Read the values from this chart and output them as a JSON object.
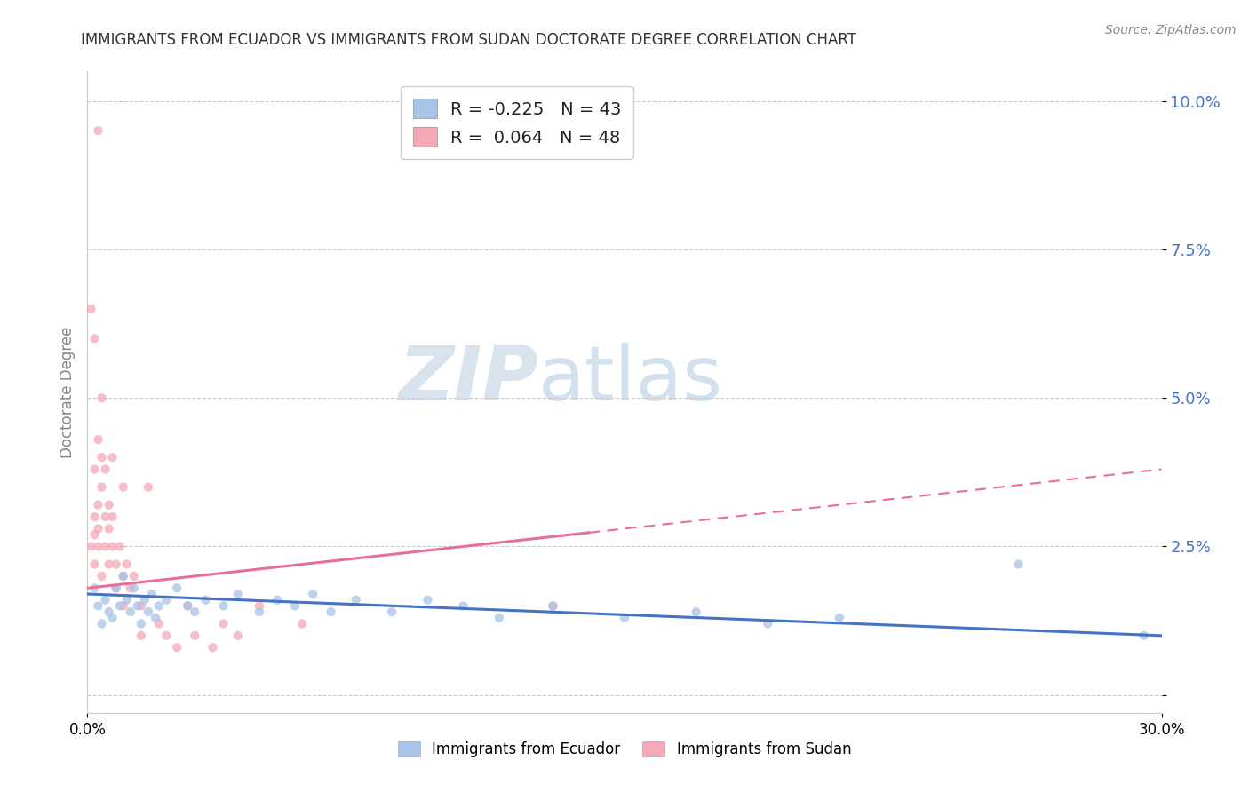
{
  "title": "IMMIGRANTS FROM ECUADOR VS IMMIGRANTS FROM SUDAN DOCTORATE DEGREE CORRELATION CHART",
  "source": "Source: ZipAtlas.com",
  "ylabel": "Doctorate Degree",
  "xlim": [
    0.0,
    0.3
  ],
  "ylim": [
    -0.003,
    0.105
  ],
  "ytick_vals": [
    0.0,
    0.025,
    0.05,
    0.075,
    0.1
  ],
  "ytick_labels": [
    "",
    "2.5%",
    "5.0%",
    "7.5%",
    "10.0%"
  ],
  "ecuador_color": "#a8c4e8",
  "sudan_color": "#f4a8b8",
  "ecuador_line_color": "#4472c4",
  "sudan_line_color": "#e87090",
  "background_color": "#ffffff",
  "legend_ecuador_label": "R = -0.225   N = 43",
  "legend_sudan_label": "R =  0.064   N = 48",
  "watermark_zip": "ZIP",
  "watermark_atlas": "atlas",
  "ecuador_R": -0.225,
  "sudan_R": 0.064,
  "ecuador_N": 43,
  "sudan_N": 48,
  "ecuador_points": [
    [
      0.002,
      0.018
    ],
    [
      0.003,
      0.015
    ],
    [
      0.004,
      0.012
    ],
    [
      0.005,
      0.016
    ],
    [
      0.006,
      0.014
    ],
    [
      0.007,
      0.013
    ],
    [
      0.008,
      0.018
    ],
    [
      0.009,
      0.015
    ],
    [
      0.01,
      0.02
    ],
    [
      0.011,
      0.016
    ],
    [
      0.012,
      0.014
    ],
    [
      0.013,
      0.018
    ],
    [
      0.014,
      0.015
    ],
    [
      0.015,
      0.012
    ],
    [
      0.016,
      0.016
    ],
    [
      0.017,
      0.014
    ],
    [
      0.018,
      0.017
    ],
    [
      0.019,
      0.013
    ],
    [
      0.02,
      0.015
    ],
    [
      0.022,
      0.016
    ],
    [
      0.025,
      0.018
    ],
    [
      0.028,
      0.015
    ],
    [
      0.03,
      0.014
    ],
    [
      0.033,
      0.016
    ],
    [
      0.038,
      0.015
    ],
    [
      0.042,
      0.017
    ],
    [
      0.048,
      0.014
    ],
    [
      0.053,
      0.016
    ],
    [
      0.058,
      0.015
    ],
    [
      0.063,
      0.017
    ],
    [
      0.068,
      0.014
    ],
    [
      0.075,
      0.016
    ],
    [
      0.085,
      0.014
    ],
    [
      0.095,
      0.016
    ],
    [
      0.105,
      0.015
    ],
    [
      0.115,
      0.013
    ],
    [
      0.13,
      0.015
    ],
    [
      0.15,
      0.013
    ],
    [
      0.17,
      0.014
    ],
    [
      0.19,
      0.012
    ],
    [
      0.21,
      0.013
    ],
    [
      0.26,
      0.022
    ],
    [
      0.295,
      0.01
    ]
  ],
  "sudan_points": [
    [
      0.001,
      0.025
    ],
    [
      0.002,
      0.03
    ],
    [
      0.002,
      0.027
    ],
    [
      0.002,
      0.022
    ],
    [
      0.003,
      0.028
    ],
    [
      0.003,
      0.025
    ],
    [
      0.003,
      0.032
    ],
    [
      0.004,
      0.02
    ],
    [
      0.004,
      0.035
    ],
    [
      0.005,
      0.03
    ],
    [
      0.005,
      0.025
    ],
    [
      0.006,
      0.022
    ],
    [
      0.006,
      0.028
    ],
    [
      0.007,
      0.025
    ],
    [
      0.007,
      0.03
    ],
    [
      0.008,
      0.018
    ],
    [
      0.008,
      0.022
    ],
    [
      0.009,
      0.025
    ],
    [
      0.01,
      0.02
    ],
    [
      0.01,
      0.015
    ],
    [
      0.011,
      0.022
    ],
    [
      0.012,
      0.018
    ],
    [
      0.013,
      0.02
    ],
    [
      0.015,
      0.015
    ],
    [
      0.015,
      0.01
    ],
    [
      0.017,
      0.035
    ],
    [
      0.02,
      0.012
    ],
    [
      0.022,
      0.01
    ],
    [
      0.025,
      0.008
    ],
    [
      0.028,
      0.015
    ],
    [
      0.03,
      0.01
    ],
    [
      0.035,
      0.008
    ],
    [
      0.038,
      0.012
    ],
    [
      0.042,
      0.01
    ],
    [
      0.048,
      0.015
    ],
    [
      0.06,
      0.012
    ],
    [
      0.13,
      0.015
    ],
    [
      0.002,
      0.06
    ],
    [
      0.003,
      0.095
    ],
    [
      0.004,
      0.05
    ],
    [
      0.001,
      0.065
    ],
    [
      0.002,
      0.038
    ],
    [
      0.003,
      0.043
    ],
    [
      0.004,
      0.04
    ],
    [
      0.005,
      0.038
    ],
    [
      0.006,
      0.032
    ],
    [
      0.007,
      0.04
    ],
    [
      0.01,
      0.035
    ]
  ]
}
